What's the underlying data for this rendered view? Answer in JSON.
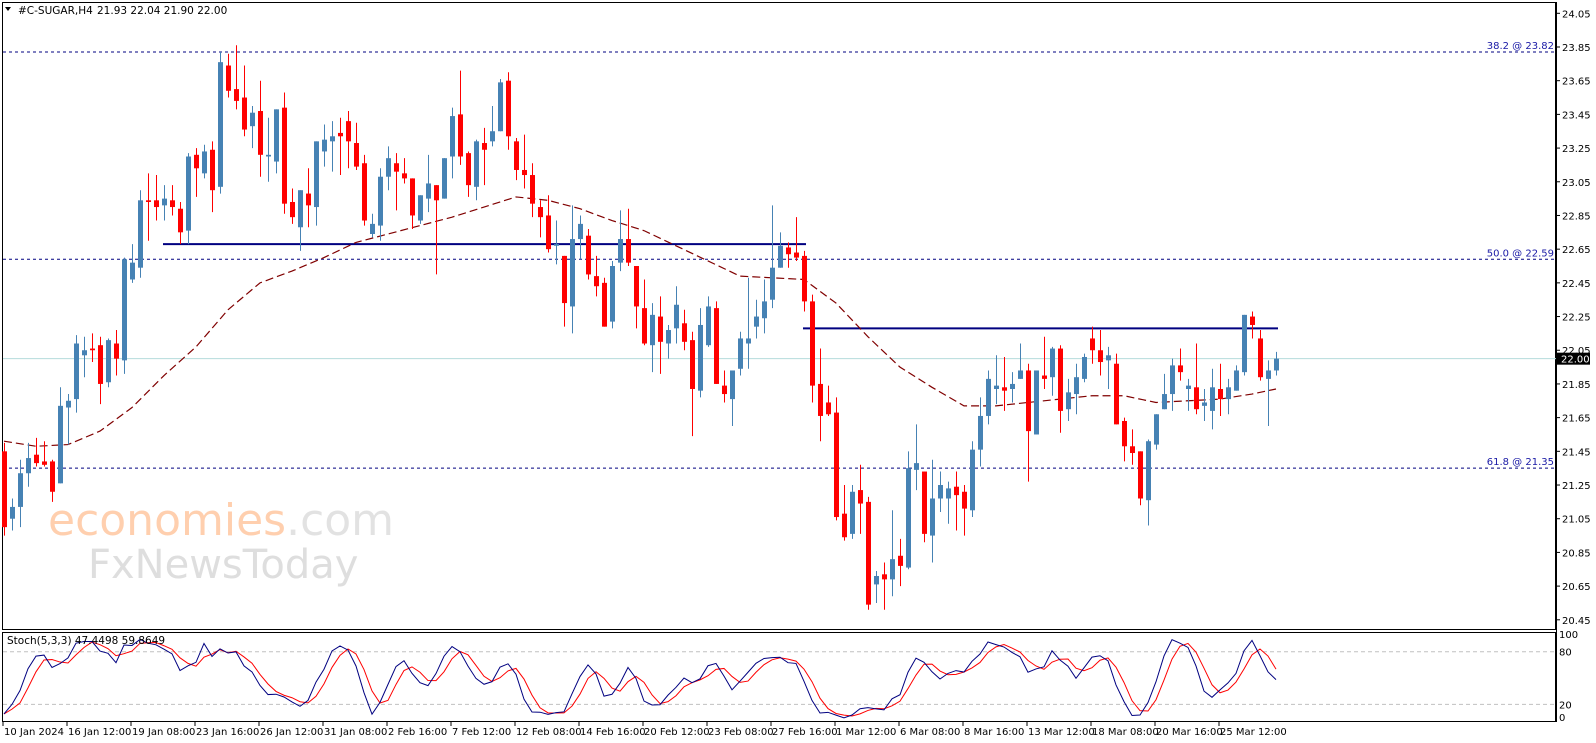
{
  "header": {
    "symbol": "#C-SUGAR,H4",
    "ohlc": "21.93 22.04 21.90 22.00"
  },
  "watermark": {
    "brand": "economies",
    "brand_suffix": ".com",
    "sub": "FxNewsToday"
  },
  "chart_data": {
    "type": "candlestick",
    "title": "#C-SUGAR,H4",
    "ylim": [
      20.45,
      24.05
    ],
    "yticks": [
      "24.05",
      "23.85",
      "23.65",
      "23.45",
      "23.25",
      "23.05",
      "22.85",
      "22.65",
      "22.45",
      "22.25",
      "22.05",
      "21.85",
      "21.65",
      "21.45",
      "21.25",
      "21.05",
      "20.85",
      "20.65",
      "20.45"
    ],
    "xticks": [
      "10 Jan 2024",
      "16 Jan 12:00",
      "19 Jan 08:00",
      "23 Jan 16:00",
      "26 Jan 12:00",
      "31 Jan 08:00",
      "2 Feb 16:00",
      "7 Feb 12:00",
      "12 Feb 08:00",
      "14 Feb 16:00",
      "20 Feb 12:00",
      "23 Feb 08:00",
      "27 Feb 16:00",
      "1 Mar 12:00",
      "6 Mar 08:00",
      "8 Mar 16:00",
      "13 Mar 12:00",
      "18 Mar 08:00",
      "20 Mar 16:00",
      "25 Mar 12:00"
    ],
    "xtick_every_candles": 8,
    "candles_ohlc": [
      [
        21.45,
        21.5,
        20.95,
        21.0
      ],
      [
        21.05,
        21.17,
        20.98,
        21.12
      ],
      [
        21.12,
        21.4,
        21.0,
        21.32
      ],
      [
        21.32,
        21.5,
        21.24,
        21.41
      ],
      [
        21.43,
        21.53,
        21.36,
        21.38
      ],
      [
        21.39,
        21.51,
        21.36,
        21.37
      ],
      [
        21.39,
        21.4,
        21.15,
        21.21
      ],
      [
        21.26,
        21.83,
        21.26,
        21.72
      ],
      [
        21.71,
        21.79,
        21.49,
        21.75
      ],
      [
        21.76,
        22.14,
        21.68,
        22.09
      ],
      [
        22.02,
        22.13,
        21.89,
        22.05
      ],
      [
        22.06,
        22.15,
        21.98,
        22.05
      ],
      [
        22.08,
        22.13,
        21.73,
        21.85
      ],
      [
        21.86,
        22.12,
        21.83,
        22.11
      ],
      [
        22.09,
        22.17,
        21.9,
        22.0
      ],
      [
        21.99,
        22.6,
        21.91,
        22.59
      ],
      [
        22.47,
        22.68,
        22.45,
        22.57
      ],
      [
        22.54,
        23.0,
        22.48,
        22.94
      ],
      [
        22.94,
        23.1,
        22.7,
        22.93
      ],
      [
        22.94,
        23.09,
        22.82,
        22.9
      ],
      [
        22.91,
        23.03,
        22.82,
        22.95
      ],
      [
        22.94,
        23.03,
        22.85,
        22.9
      ],
      [
        22.89,
        22.93,
        22.68,
        22.75
      ],
      [
        22.76,
        23.22,
        22.68,
        23.2
      ],
      [
        23.21,
        23.25,
        22.96,
        23.13
      ],
      [
        23.1,
        23.27,
        23.07,
        23.23
      ],
      [
        23.24,
        23.29,
        22.87,
        23.0
      ],
      [
        23.02,
        23.82,
        22.98,
        23.76
      ],
      [
        23.74,
        23.81,
        23.55,
        23.59
      ],
      [
        23.6,
        23.86,
        23.48,
        23.53
      ],
      [
        23.55,
        23.74,
        23.32,
        23.36
      ],
      [
        23.38,
        23.5,
        23.25,
        23.46
      ],
      [
        23.47,
        23.65,
        23.08,
        23.21
      ],
      [
        23.2,
        23.43,
        23.05,
        23.21
      ],
      [
        23.17,
        23.48,
        23.1,
        23.48
      ],
      [
        23.49,
        23.58,
        22.86,
        22.92
      ],
      [
        22.93,
        23.01,
        22.8,
        22.84
      ],
      [
        22.78,
        23.0,
        22.64,
        23.0
      ],
      [
        22.98,
        23.13,
        22.78,
        22.91
      ],
      [
        22.9,
        23.29,
        22.79,
        23.29
      ],
      [
        23.23,
        23.39,
        23.14,
        23.3
      ],
      [
        23.29,
        23.41,
        23.11,
        23.32
      ],
      [
        23.34,
        23.43,
        23.09,
        23.32
      ],
      [
        23.41,
        23.47,
        23.13,
        23.29
      ],
      [
        23.28,
        23.4,
        23.12,
        23.14
      ],
      [
        23.16,
        23.21,
        22.79,
        22.82
      ],
      [
        22.74,
        22.86,
        22.72,
        22.8
      ],
      [
        22.79,
        23.13,
        22.7,
        23.08
      ],
      [
        23.08,
        23.26,
        23.0,
        23.19
      ],
      [
        23.16,
        23.22,
        22.88,
        23.11
      ],
      [
        23.1,
        23.19,
        23.04,
        23.07
      ],
      [
        23.07,
        23.07,
        22.77,
        22.85
      ],
      [
        22.82,
        22.97,
        22.8,
        22.97
      ],
      [
        22.95,
        23.21,
        22.87,
        23.04
      ],
      [
        23.03,
        23.03,
        22.5,
        22.94
      ],
      [
        22.95,
        23.19,
        22.95,
        23.19
      ],
      [
        23.2,
        23.49,
        23.07,
        23.44
      ],
      [
        23.45,
        23.71,
        23.15,
        23.2
      ],
      [
        23.22,
        23.23,
        22.96,
        23.03
      ],
      [
        23.02,
        23.3,
        22.94,
        23.29
      ],
      [
        23.28,
        23.37,
        23.03,
        23.24
      ],
      [
        23.29,
        23.5,
        23.26,
        23.35
      ],
      [
        23.35,
        23.66,
        23.35,
        23.64
      ],
      [
        23.65,
        23.7,
        23.24,
        23.32
      ],
      [
        23.29,
        23.31,
        23.06,
        23.12
      ],
      [
        23.12,
        23.33,
        23.01,
        23.09
      ],
      [
        23.09,
        23.16,
        22.84,
        22.92
      ],
      [
        22.9,
        22.94,
        22.72,
        22.84
      ],
      [
        22.85,
        22.97,
        22.63,
        22.65
      ],
      [
        22.67,
        22.82,
        22.56,
        22.68
      ],
      [
        22.61,
        22.61,
        22.19,
        22.33
      ],
      [
        22.31,
        22.91,
        22.15,
        22.71
      ],
      [
        22.71,
        22.85,
        22.59,
        22.8
      ],
      [
        22.73,
        22.77,
        22.47,
        22.5
      ],
      [
        22.49,
        22.61,
        22.37,
        22.43
      ],
      [
        22.45,
        22.48,
        22.19,
        22.19
      ],
      [
        22.22,
        22.58,
        22.18,
        22.55
      ],
      [
        22.57,
        22.88,
        22.52,
        22.71
      ],
      [
        22.71,
        22.89,
        22.55,
        22.57
      ],
      [
        22.55,
        22.55,
        22.18,
        22.31
      ],
      [
        22.3,
        22.47,
        22.08,
        22.09
      ],
      [
        22.08,
        22.33,
        21.92,
        22.26
      ],
      [
        22.25,
        22.37,
        21.91,
        22.1
      ],
      [
        22.09,
        22.2,
        22.0,
        22.17
      ],
      [
        22.18,
        22.43,
        22.09,
        22.32
      ],
      [
        22.21,
        22.29,
        22.05,
        22.1
      ],
      [
        22.11,
        22.16,
        21.54,
        21.82
      ],
      [
        21.81,
        22.3,
        21.77,
        22.2
      ],
      [
        22.08,
        22.37,
        22.07,
        22.31
      ],
      [
        22.3,
        22.34,
        21.85,
        21.85
      ],
      [
        21.84,
        21.93,
        21.74,
        21.79
      ],
      [
        21.76,
        21.93,
        21.6,
        21.93
      ],
      [
        21.94,
        22.16,
        21.9,
        22.12
      ],
      [
        22.09,
        22.48,
        21.94,
        22.12
      ],
      [
        22.19,
        22.35,
        22.12,
        22.25
      ],
      [
        22.24,
        22.47,
        22.15,
        22.34
      ],
      [
        22.35,
        22.91,
        22.3,
        22.54
      ],
      [
        22.54,
        22.75,
        22.54,
        22.67
      ],
      [
        22.66,
        22.69,
        22.54,
        22.62
      ],
      [
        22.63,
        22.84,
        22.58,
        22.6
      ],
      [
        22.61,
        22.64,
        22.28,
        22.34
      ],
      [
        22.34,
        22.38,
        21.74,
        21.84
      ],
      [
        21.85,
        22.06,
        21.51,
        21.66
      ],
      [
        21.74,
        21.84,
        21.66,
        21.67
      ],
      [
        21.68,
        21.77,
        21.04,
        21.06
      ],
      [
        21.08,
        21.25,
        20.92,
        20.94
      ],
      [
        20.96,
        21.25,
        20.93,
        21.21
      ],
      [
        21.22,
        21.37,
        20.96,
        21.14
      ],
      [
        21.15,
        21.18,
        20.51,
        20.54
      ],
      [
        20.66,
        20.74,
        20.55,
        20.71
      ],
      [
        20.72,
        20.79,
        20.51,
        20.69
      ],
      [
        20.69,
        21.1,
        20.59,
        20.81
      ],
      [
        20.83,
        20.93,
        20.65,
        20.77
      ],
      [
        20.76,
        21.45,
        20.75,
        21.35
      ],
      [
        21.34,
        21.61,
        21.22,
        21.38
      ],
      [
        21.33,
        21.33,
        20.91,
        20.96
      ],
      [
        20.95,
        21.4,
        20.79,
        21.17
      ],
      [
        21.17,
        21.33,
        21.09,
        21.25
      ],
      [
        21.17,
        21.27,
        21.02,
        21.23
      ],
      [
        21.24,
        21.33,
        20.98,
        21.19
      ],
      [
        21.21,
        21.25,
        20.95,
        21.11
      ],
      [
        21.1,
        21.51,
        21.06,
        21.46
      ],
      [
        21.46,
        21.77,
        21.36,
        21.66
      ],
      [
        21.66,
        21.93,
        21.61,
        21.88
      ],
      [
        21.82,
        22.02,
        21.73,
        21.84
      ],
      [
        21.83,
        22.01,
        21.69,
        21.81
      ],
      [
        21.82,
        21.92,
        21.74,
        21.85
      ],
      [
        21.88,
        22.09,
        21.88,
        21.93
      ],
      [
        21.93,
        21.97,
        21.27,
        21.57
      ],
      [
        21.55,
        21.93,
        21.55,
        21.93
      ],
      [
        21.9,
        22.13,
        21.82,
        21.88
      ],
      [
        21.89,
        22.07,
        21.78,
        22.06
      ],
      [
        22.06,
        22.08,
        21.56,
        21.69
      ],
      [
        21.7,
        21.88,
        21.63,
        21.8
      ],
      [
        21.79,
        21.97,
        21.67,
        21.89
      ],
      [
        21.88,
        22.03,
        21.86,
        22.01
      ],
      [
        22.12,
        22.19,
        21.97,
        22.05
      ],
      [
        22.05,
        22.17,
        21.9,
        21.98
      ],
      [
        21.99,
        22.07,
        21.82,
        22.02
      ],
      [
        21.97,
        22.03,
        21.61,
        21.61
      ],
      [
        21.63,
        21.65,
        21.39,
        21.48
      ],
      [
        21.48,
        21.58,
        21.37,
        21.44
      ],
      [
        21.45,
        21.45,
        21.13,
        21.17
      ],
      [
        21.16,
        21.52,
        21.01,
        21.51
      ],
      [
        21.49,
        21.67,
        21.46,
        21.67
      ],
      [
        21.7,
        21.91,
        21.7,
        21.79
      ],
      [
        21.79,
        22.0,
        21.69,
        21.96
      ],
      [
        21.96,
        22.06,
        21.87,
        21.92
      ],
      [
        21.82,
        21.88,
        21.69,
        21.84
      ],
      [
        21.83,
        22.09,
        21.67,
        21.7
      ],
      [
        21.72,
        21.82,
        21.63,
        21.74
      ],
      [
        21.69,
        21.94,
        21.58,
        21.83
      ],
      [
        21.82,
        21.97,
        21.66,
        21.76
      ],
      [
        21.76,
        21.88,
        21.67,
        21.83
      ],
      [
        21.81,
        21.96,
        21.81,
        21.93
      ],
      [
        21.92,
        22.26,
        21.9,
        22.26
      ],
      [
        22.25,
        22.28,
        22.12,
        22.2
      ],
      [
        22.12,
        22.17,
        21.87,
        21.89
      ],
      [
        21.88,
        21.99,
        21.6,
        21.93
      ],
      [
        21.93,
        22.04,
        21.9,
        22.0
      ]
    ],
    "moving_average": {
      "sample_every_candles": 4,
      "values": [
        21.51,
        21.48,
        21.49,
        21.57,
        21.71,
        21.9,
        22.07,
        22.29,
        22.45,
        22.52,
        22.6,
        22.69,
        22.74,
        22.79,
        22.84,
        22.9,
        22.96,
        22.94,
        22.89,
        22.82,
        22.76,
        22.67,
        22.58,
        22.49,
        22.48,
        22.47,
        22.33,
        22.13,
        21.95,
        21.83,
        21.72,
        21.72,
        21.74,
        21.76,
        21.78,
        21.78,
        21.74,
        21.75,
        21.76,
        21.79
      ],
      "last": 21.82
    },
    "fib_levels": [
      {
        "label": "38.2 @ 23.82",
        "price": 23.82
      },
      {
        "label": "50.0 @ 22.59",
        "price": 22.59
      },
      {
        "label": "61.8 @ 21.35",
        "price": 21.35
      }
    ],
    "resistance_lines": [
      {
        "price": 22.68,
        "from_candle": 20,
        "to_candle": 100
      },
      {
        "price": 22.18,
        "from_candle": 100,
        "to_candle": 159
      }
    ],
    "current_price": {
      "value": 22.0,
      "label": "22.00"
    },
    "stochastic": {
      "label": "Stoch(5,3,3) 47.4498 59.8649",
      "k_period": 5,
      "d_period": 3,
      "slowing": 3,
      "ylim": [
        0,
        100
      ],
      "levels": [
        20,
        80
      ],
      "ticks": [
        "100",
        "80",
        "20",
        "0"
      ]
    },
    "colors": {
      "bull": "#4682b4",
      "bear": "#ff0000",
      "ma": "#800000",
      "lines": "#000080",
      "k": "#000080",
      "d": "#ff0000",
      "current": "#b4dcdc"
    }
  }
}
